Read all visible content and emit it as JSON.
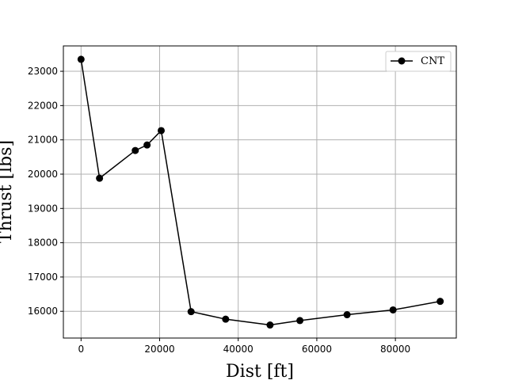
{
  "chart_data": {
    "type": "line",
    "xlabel": "Dist [ft]",
    "ylabel": "Thrust [lbs]",
    "xlim": [
      -4500,
      95500
    ],
    "ylim": [
      15220,
      23740
    ],
    "xticks": [
      0,
      20000,
      40000,
      60000,
      80000
    ],
    "yticks": [
      16000,
      17000,
      18000,
      19000,
      20000,
      21000,
      22000,
      23000
    ],
    "grid": true,
    "legend_position": "top-right",
    "line_color": "#000000",
    "series": [
      {
        "name": "CNT",
        "x": [
          0,
          4700,
          13800,
          16800,
          20400,
          28000,
          36800,
          48100,
          55700,
          67700,
          79400,
          91400
        ],
        "y": [
          23350,
          19880,
          20690,
          20850,
          21270,
          15990,
          15770,
          15600,
          15730,
          15900,
          16040,
          16290
        ]
      }
    ]
  }
}
